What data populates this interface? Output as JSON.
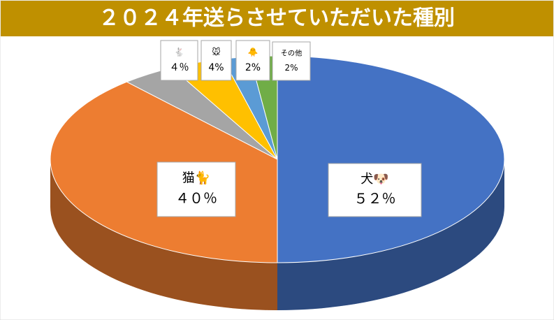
{
  "chart_data": {
    "type": "pie3d",
    "title": "２０２４年送らさせていただいた種別",
    "categories": [
      "犬🐶",
      "猫🐈",
      "🐇",
      "🐭",
      "🐥",
      "その他"
    ],
    "values": [
      52,
      40,
      4,
      4,
      2,
      2
    ],
    "value_labels": [
      "５２％",
      "４０％",
      "４％",
      "4%",
      "2%",
      "2%"
    ],
    "colors": [
      "#4472c4",
      "#ed7d31",
      "#a5a5a5",
      "#ffc000",
      "#5b9bd5",
      "#70ad47"
    ]
  }
}
